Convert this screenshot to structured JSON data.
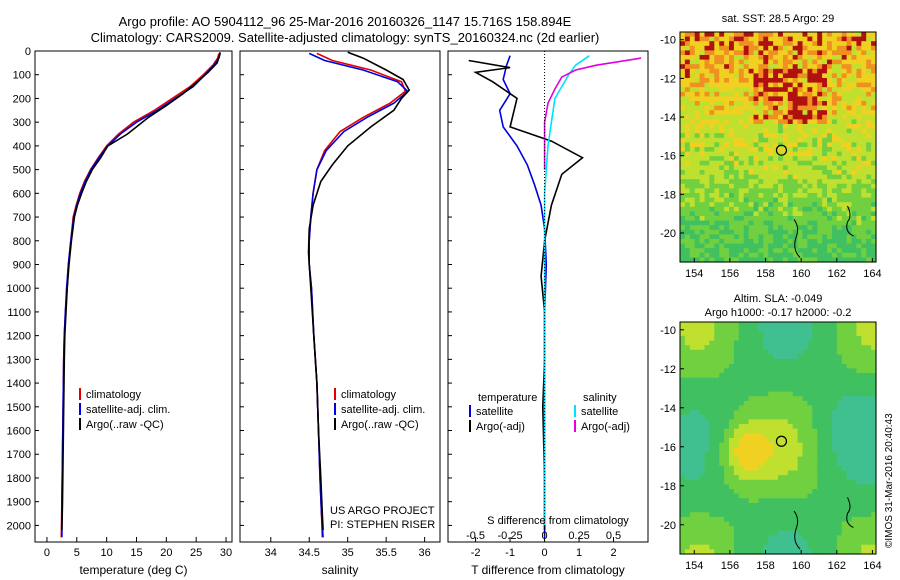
{
  "header": {
    "line1": "Argo profile: AO 5904112_96 25-Mar-2016 20160326_1147 15.716S 158.894E",
    "line2": "Climatology: CARS2009. Satellite-adjusted climatology: synTS_20160324.nc (2d earlier)"
  },
  "colors": {
    "climatology": "#e00000",
    "satellite": "#0000e0",
    "argo": "#000000",
    "sat_salinity": "#00e0ff",
    "argo_salinity": "#e000e0"
  },
  "credits": {
    "project": "US ARGO PROJECT",
    "pi": "PI: STEPHEN RISER",
    "imos": "©IMOS 31-Mar-2016 20:40:43"
  },
  "chart_data": [
    {
      "type": "line",
      "xlabel": "temperature (deg C)",
      "xlim": [
        -2,
        31
      ],
      "xticks": [
        0,
        5,
        10,
        15,
        20,
        25,
        30
      ],
      "ylim": [
        2070,
        0
      ],
      "yticks": [
        0,
        100,
        200,
        300,
        400,
        500,
        600,
        700,
        800,
        900,
        1000,
        1100,
        1200,
        1300,
        1400,
        1500,
        1600,
        1700,
        1800,
        1900,
        2000
      ],
      "legend": [
        "climatology",
        "satellite-adj. clim.",
        "Argo(..raw -QC)"
      ],
      "series": [
        {
          "name": "climatology",
          "x": [
            28.8,
            28.6,
            27.8,
            26.2,
            24.0,
            21.0,
            18.0,
            14.5,
            12.0,
            10.0,
            8.6,
            7.3,
            6.3,
            5.5,
            4.9,
            4.4,
            4.0,
            3.6,
            3.4,
            3.1,
            2.9,
            2.8,
            2.7,
            2.6,
            2.5,
            2.4
          ],
          "y": [
            10,
            30,
            60,
            100,
            150,
            200,
            250,
            300,
            350,
            400,
            450,
            500,
            550,
            600,
            650,
            700,
            800,
            900,
            1000,
            1100,
            1200,
            1300,
            1500,
            1700,
            1900,
            2050
          ]
        },
        {
          "name": "satellite-adj. clim.",
          "x": [
            29.0,
            28.8,
            28.0,
            26.5,
            24.5,
            21.5,
            18.5,
            15.0,
            12.3,
            10.2,
            8.7,
            7.4,
            6.4,
            5.6,
            5.0,
            4.5,
            4.0,
            3.6,
            3.3,
            3.1,
            2.9,
            2.8,
            2.7,
            2.6,
            2.5,
            2.5
          ],
          "y": [
            10,
            30,
            60,
            100,
            150,
            200,
            250,
            300,
            350,
            400,
            450,
            500,
            550,
            600,
            650,
            700,
            800,
            900,
            1000,
            1100,
            1200,
            1300,
            1500,
            1700,
            1900,
            2050
          ]
        },
        {
          "name": "Argo(..raw -QC)",
          "x": [
            29.0,
            28.9,
            28.5,
            27.0,
            25.2,
            22.8,
            20.0,
            17.0,
            13.5,
            10.2,
            9.0,
            7.6,
            6.6,
            5.8,
            5.1,
            4.6,
            4.1,
            3.7,
            3.4,
            3.2,
            3.0,
            2.9,
            2.8,
            2.7,
            2.6,
            2.5
          ],
          "y": [
            5,
            20,
            50,
            90,
            130,
            180,
            230,
            280,
            350,
            400,
            450,
            500,
            550,
            600,
            650,
            700,
            800,
            900,
            1000,
            1100,
            1200,
            1300,
            1500,
            1700,
            1900,
            2020
          ]
        }
      ]
    },
    {
      "type": "line",
      "xlabel": "salinity",
      "xlim": [
        33.6,
        36.2
      ],
      "xticks": [
        34,
        34.5,
        35,
        35.5,
        36
      ],
      "ylim": [
        2070,
        0
      ],
      "legend": [
        "climatology",
        "satellite-adj. clim.",
        "Argo(..raw -QC)"
      ],
      "series": [
        {
          "name": "climatology",
          "x": [
            34.6,
            34.8,
            35.3,
            35.7,
            35.75,
            35.55,
            35.2,
            34.9,
            34.7,
            34.6,
            34.55,
            34.52,
            34.5,
            34.5,
            34.53,
            34.56,
            34.6,
            34.62,
            34.64,
            34.66,
            34.67
          ],
          "y": [
            10,
            40,
            80,
            130,
            170,
            220,
            280,
            340,
            420,
            500,
            600,
            700,
            800,
            900,
            1000,
            1200,
            1400,
            1600,
            1800,
            1950,
            2050
          ]
        },
        {
          "name": "satellite-adj. clim.",
          "x": [
            34.5,
            34.7,
            35.2,
            35.65,
            35.78,
            35.6,
            35.25,
            34.95,
            34.72,
            34.6,
            34.55,
            34.52,
            34.5,
            34.5,
            34.53,
            34.56,
            34.6,
            34.62,
            34.64,
            34.66,
            34.68
          ],
          "y": [
            10,
            40,
            80,
            130,
            170,
            220,
            280,
            340,
            420,
            500,
            600,
            700,
            800,
            900,
            1000,
            1200,
            1400,
            1600,
            1800,
            1950,
            2050
          ]
        },
        {
          "name": "Argo(..raw -QC)",
          "x": [
            35.0,
            35.2,
            35.5,
            35.72,
            35.8,
            35.7,
            35.6,
            35.3,
            35.0,
            34.8,
            34.65,
            34.55,
            34.5,
            34.49,
            34.52,
            34.56,
            34.6,
            34.62,
            34.65,
            34.67,
            34.68
          ],
          "y": [
            5,
            30,
            80,
            120,
            165,
            200,
            250,
            320,
            400,
            480,
            550,
            650,
            750,
            850,
            1000,
            1200,
            1400,
            1600,
            1800,
            1950,
            2020
          ]
        }
      ]
    },
    {
      "type": "line",
      "xlabel": "T difference from climatology",
      "xlabel_top": "S difference from climatology",
      "xlim": [
        -2.8,
        3.0
      ],
      "xticks": [
        -2,
        -1,
        0,
        1,
        2
      ],
      "xticks_top": [
        "-0.5",
        "-0.25",
        "0",
        "0.25",
        "0.5"
      ],
      "ylim": [
        2070,
        0
      ],
      "legend_left_title": "temperature",
      "legend_right_title": "salinity",
      "legend": [
        "satellite",
        "Argo(-adj)",
        "satellite",
        "Argo(-adj)"
      ],
      "series": [
        {
          "name": "temperature satellite",
          "x": [
            -1.0,
            -1.1,
            -1.2,
            -1.0,
            -1.3,
            -1.2,
            -0.8,
            -0.5,
            -0.3,
            -0.1,
            0.0,
            0.05,
            0.0,
            0.0,
            0.0,
            0.0,
            0.0
          ],
          "y": [
            20,
            60,
            120,
            180,
            250,
            320,
            400,
            480,
            560,
            650,
            750,
            900,
            1100,
            1300,
            1500,
            1800,
            2050
          ]
        },
        {
          "name": "temperature Argo(-adj)",
          "x": [
            -2.2,
            -1.0,
            -2.0,
            -1.5,
            -0.8,
            -1.0,
            0.2,
            1.1,
            0.5,
            0.2,
            0.0,
            -0.1,
            0.0,
            0.0,
            -0.05,
            0.0,
            0.0
          ],
          "y": [
            40,
            70,
            90,
            130,
            200,
            320,
            380,
            450,
            520,
            650,
            800,
            950,
            1100,
            1300,
            1500,
            1800,
            2020
          ]
        },
        {
          "name": "salinity satellite",
          "x": [
            1.3,
            0.9,
            0.7,
            0.5,
            0.3,
            0.2,
            0.1,
            0.05,
            0.0,
            0.0,
            0.0,
            0.0,
            0.0
          ],
          "y": [
            20,
            60,
            100,
            150,
            200,
            300,
            400,
            500,
            600,
            700,
            800,
            1000,
            2000
          ]
        },
        {
          "name": "salinity Argo(-adj)",
          "x": [
            2.8,
            1.5,
            0.9,
            0.5,
            0.3,
            0.1,
            0.0,
            0.0,
            0.0
          ],
          "y": [
            30,
            60,
            80,
            110,
            160,
            220,
            300,
            400,
            500
          ]
        }
      ]
    },
    {
      "type": "heatmap",
      "title": "sat. SST: 28.5 Argo: 29",
      "xticks": [
        154,
        156,
        158,
        160,
        162,
        164
      ],
      "yticks": [
        -10,
        -12,
        -14,
        -16,
        -18,
        -20
      ],
      "xlim": [
        153.2,
        164.2
      ],
      "ylim": [
        -21.5,
        -9.6
      ],
      "marker": {
        "lon": 158.894,
        "lat": -15.716
      }
    },
    {
      "type": "heatmap",
      "title": "Altim. SLA: -0.049",
      "subtitle": "Argo h1000: -0.17 h2000: -0.2",
      "xticks": [
        154,
        156,
        158,
        160,
        162,
        164
      ],
      "yticks": [
        -10,
        -12,
        -14,
        -16,
        -18,
        -20
      ],
      "xlim": [
        153.2,
        164.2
      ],
      "ylim": [
        -21.5,
        -9.6
      ],
      "marker": {
        "lon": 158.894,
        "lat": -15.716
      }
    }
  ]
}
